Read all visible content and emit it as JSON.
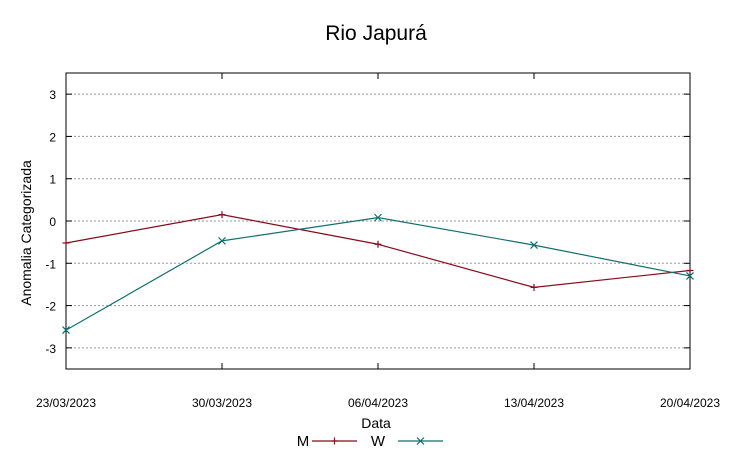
{
  "chart_data": {
    "type": "line",
    "title": "Rio Japurá",
    "xlabel": "Data",
    "ylabel": "Anomalia Categorizada",
    "categories": [
      "23/03/2023",
      "30/03/2023",
      "06/04/2023",
      "13/04/2023",
      "20/04/2023"
    ],
    "ylim": [
      -3.5,
      3.5
    ],
    "yticks": [
      "-3",
      "-2",
      "-1",
      "0",
      "1",
      "2",
      "3"
    ],
    "grid": true,
    "legend_position": "bottom-center",
    "series": [
      {
        "name": "M",
        "color": "#8b0a1a",
        "marker": "plus",
        "values": [
          -0.52,
          0.15,
          -0.55,
          -1.57,
          -1.17
        ]
      },
      {
        "name": "W",
        "color": "#0e7070",
        "marker": "cross",
        "values": [
          -2.58,
          -0.47,
          0.08,
          -0.57,
          -1.3
        ]
      }
    ]
  }
}
